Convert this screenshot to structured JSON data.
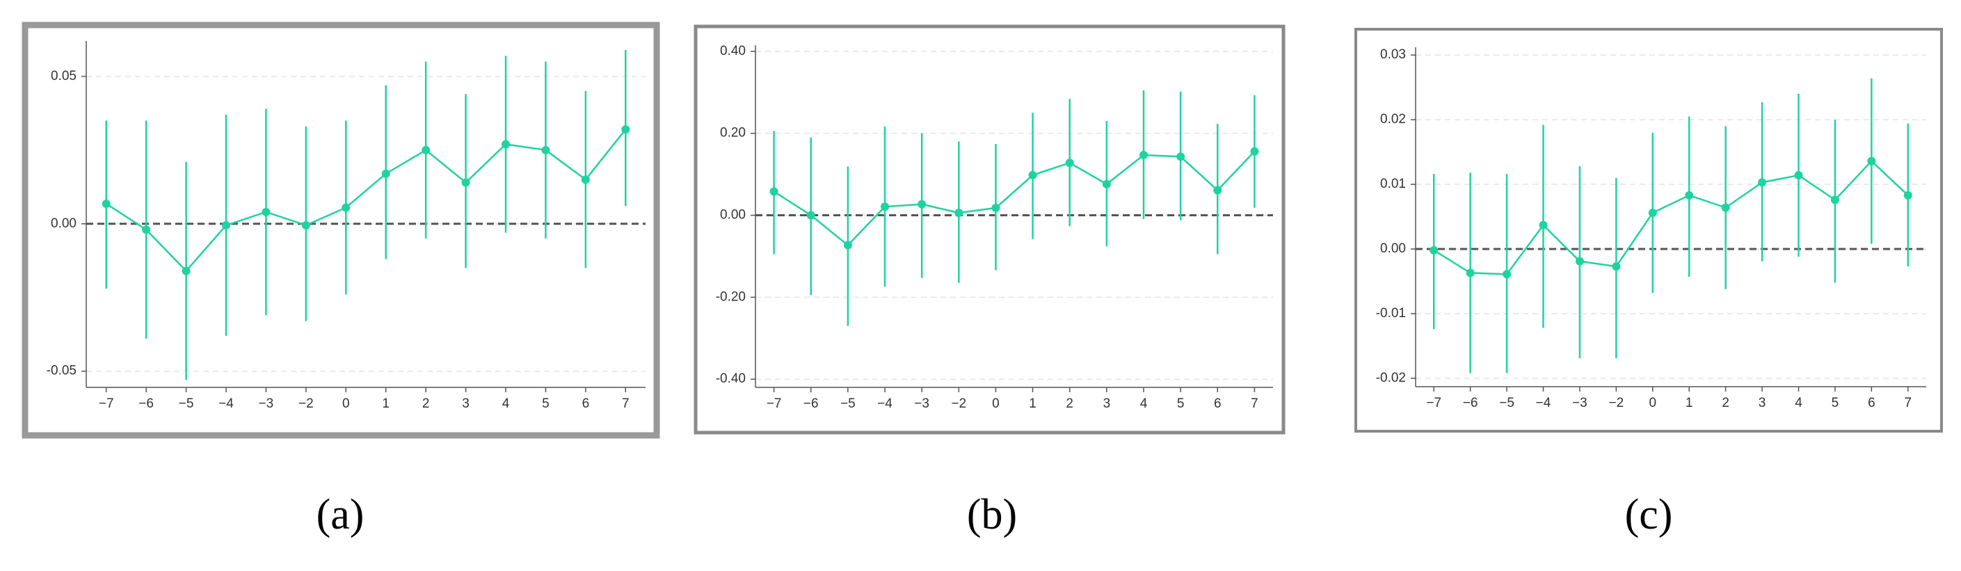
{
  "chart_data": [
    {
      "type": "errorline",
      "caption": "(a)",
      "color": "#1fd3a0",
      "categories": [
        "−7",
        "−6",
        "−5",
        "−4",
        "−3",
        "−2",
        "0",
        "1",
        "2",
        "3",
        "4",
        "5",
        "6",
        "7"
      ],
      "values": [
        0.0068,
        -0.002,
        -0.016,
        -0.0005,
        0.004,
        -0.0005,
        0.0055,
        0.017,
        0.025,
        0.014,
        0.027,
        0.025,
        0.015,
        0.032
      ],
      "ci_low": [
        -0.022,
        -0.039,
        -0.053,
        -0.038,
        -0.031,
        -0.033,
        -0.024,
        -0.012,
        -0.005,
        -0.015,
        -0.003,
        -0.005,
        -0.015,
        0.006
      ],
      "ci_high": [
        0.035,
        0.035,
        0.021,
        0.037,
        0.039,
        0.033,
        0.035,
        0.047,
        0.055,
        0.044,
        0.057,
        0.055,
        0.045,
        0.059
      ],
      "ylim": [
        -0.0555,
        0.062
      ],
      "yticks": [
        -0.05,
        {
          "value": 0,
          "label": "0.00"
        },
        0.05
      ],
      "grid": true
    },
    {
      "type": "errorline",
      "caption": "(b)",
      "color": "#1fd3a0",
      "categories": [
        "−7",
        "−6",
        "−5",
        "−4",
        "−3",
        "−2",
        "0",
        "1",
        "2",
        "3",
        "4",
        "5",
        "6",
        "7"
      ],
      "values": [
        0.058,
        0,
        -0.073,
        0.021,
        0.027,
        0.006,
        0.018,
        0.098,
        0.128,
        0.076,
        0.147,
        0.143,
        0.061,
        0.156
      ],
      "ci_low": [
        -0.095,
        -0.195,
        -0.27,
        -0.174,
        -0.153,
        -0.165,
        -0.134,
        -0.058,
        -0.027,
        -0.076,
        -0.009,
        -0.012,
        -0.095,
        0.018
      ],
      "ci_high": [
        0.206,
        0.19,
        0.119,
        0.217,
        0.2,
        0.18,
        0.174,
        0.25,
        0.284,
        0.23,
        0.305,
        0.302,
        0.223,
        0.293
      ],
      "ylim": [
        -0.42,
        0.415
      ],
      "yticks": [
        {
          "value": -0.4,
          "label": "-0.40"
        },
        {
          "value": -0.2,
          "label": "-0.20"
        },
        {
          "value": 0,
          "label": "0.00"
        },
        {
          "value": 0.2,
          "label": "0.20"
        },
        {
          "value": 0.4,
          "label": "0.40"
        }
      ],
      "grid": true
    },
    {
      "type": "errorline",
      "caption": "(c)",
      "color": "#1fd3a0",
      "categories": [
        "−7",
        "−6",
        "−5",
        "−4",
        "−3",
        "−2",
        "0",
        "1",
        "2",
        "3",
        "4",
        "5",
        "6",
        "7"
      ],
      "values": [
        -0.0002,
        -0.0037,
        -0.0039,
        0.0037,
        -0.0019,
        -0.0027,
        0.0056,
        0.0083,
        0.0064,
        0.0103,
        0.0114,
        0.0076,
        0.0136,
        0.0083
      ],
      "ci_low": [
        -0.0124,
        -0.0192,
        -0.0192,
        -0.0122,
        -0.0169,
        -0.0169,
        -0.0068,
        -0.0043,
        -0.0062,
        -0.0019,
        -0.0012,
        -0.0052,
        0.0008,
        -0.0027
      ],
      "ci_high": [
        0.0116,
        0.0118,
        0.0116,
        0.0192,
        0.0128,
        0.011,
        0.018,
        0.0205,
        0.019,
        0.0227,
        0.024,
        0.02,
        0.0264,
        0.0194
      ],
      "ylim": [
        -0.0213,
        0.0312
      ],
      "yticks": [
        -0.02,
        -0.01,
        {
          "value": 0,
          "label": "0.00"
        },
        0.01,
        0.02,
        0.03
      ],
      "grid": true
    }
  ]
}
